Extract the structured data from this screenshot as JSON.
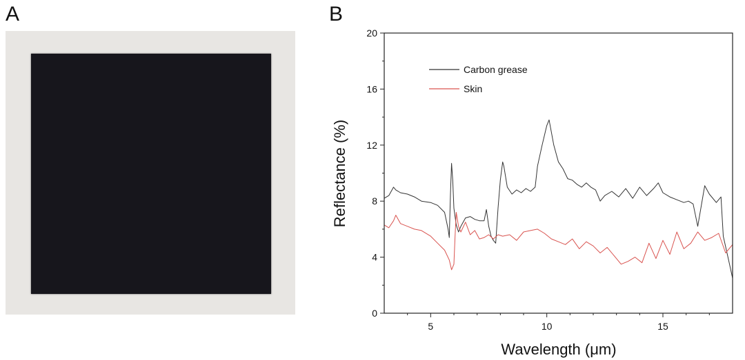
{
  "panels": {
    "a_label": "A",
    "b_label": "B"
  },
  "photo": {
    "background": "#e8e6e3",
    "square_color": "#17161c"
  },
  "chart_data": {
    "type": "line",
    "xlabel": "Wavelength (μm)",
    "ylabel": "Reflectance (%)",
    "xlim": [
      3,
      18
    ],
    "ylim": [
      0,
      20
    ],
    "xticks": [
      5,
      10,
      15
    ],
    "yticks": [
      0,
      4,
      8,
      12,
      16,
      20
    ],
    "legend_position": "top-left",
    "series": [
      {
        "name": "Carbon grease",
        "color": "#333333",
        "x": [
          3.0,
          3.2,
          3.4,
          3.5,
          3.7,
          4.0,
          4.3,
          4.6,
          5.0,
          5.3,
          5.6,
          5.75,
          5.8,
          5.85,
          5.9,
          5.95,
          6.0,
          6.1,
          6.2,
          6.3,
          6.5,
          6.7,
          6.9,
          7.1,
          7.3,
          7.4,
          7.5,
          7.6,
          7.7,
          7.8,
          7.9,
          8.0,
          8.1,
          8.15,
          8.3,
          8.5,
          8.7,
          8.9,
          9.1,
          9.3,
          9.5,
          9.6,
          9.8,
          10.0,
          10.1,
          10.3,
          10.5,
          10.7,
          10.9,
          11.1,
          11.3,
          11.5,
          11.7,
          11.9,
          12.1,
          12.3,
          12.5,
          12.8,
          13.1,
          13.4,
          13.7,
          14.0,
          14.3,
          14.6,
          14.8,
          15.0,
          15.3,
          15.6,
          15.9,
          16.1,
          16.3,
          16.5,
          16.8,
          17.0,
          17.3,
          17.5,
          17.6,
          17.8,
          18.0
        ],
        "y": [
          8.2,
          8.4,
          9.0,
          8.8,
          8.6,
          8.5,
          8.3,
          8.0,
          7.9,
          7.7,
          7.2,
          6.0,
          5.4,
          8.5,
          10.7,
          9.5,
          7.5,
          6.3,
          5.8,
          6.2,
          6.8,
          6.9,
          6.7,
          6.6,
          6.6,
          7.4,
          6.2,
          5.5,
          5.2,
          5.0,
          7.5,
          9.5,
          10.8,
          10.5,
          9.0,
          8.5,
          8.8,
          8.6,
          8.9,
          8.7,
          9.0,
          10.5,
          12.0,
          13.4,
          13.8,
          12.0,
          10.8,
          10.3,
          9.6,
          9.5,
          9.2,
          9.0,
          9.3,
          9.0,
          8.8,
          8.0,
          8.4,
          8.7,
          8.3,
          8.9,
          8.2,
          9.0,
          8.4,
          8.9,
          9.3,
          8.6,
          8.3,
          8.1,
          7.9,
          8.0,
          7.8,
          6.2,
          9.1,
          8.5,
          7.9,
          8.3,
          5.5,
          4.0,
          2.5
        ]
      },
      {
        "name": "Skin",
        "color": "#d9534f",
        "x": [
          3.0,
          3.2,
          3.4,
          3.5,
          3.7,
          4.0,
          4.3,
          4.6,
          5.0,
          5.3,
          5.6,
          5.8,
          5.9,
          6.0,
          6.05,
          6.1,
          6.2,
          6.3,
          6.5,
          6.7,
          6.9,
          7.1,
          7.3,
          7.5,
          7.7,
          7.9,
          8.1,
          8.4,
          8.7,
          9.0,
          9.3,
          9.6,
          9.9,
          10.2,
          10.5,
          10.8,
          11.1,
          11.4,
          11.7,
          12.0,
          12.3,
          12.6,
          12.9,
          13.2,
          13.5,
          13.8,
          14.1,
          14.4,
          14.7,
          15.0,
          15.3,
          15.6,
          15.9,
          16.2,
          16.5,
          16.8,
          17.1,
          17.4,
          17.7,
          18.0
        ],
        "y": [
          6.3,
          6.1,
          6.6,
          7.0,
          6.4,
          6.2,
          6.0,
          5.9,
          5.5,
          5.0,
          4.5,
          3.8,
          3.1,
          3.5,
          5.5,
          7.2,
          6.2,
          5.8,
          6.5,
          5.6,
          5.9,
          5.3,
          5.4,
          5.6,
          5.3,
          5.6,
          5.5,
          5.6,
          5.2,
          5.8,
          5.9,
          6.0,
          5.7,
          5.3,
          5.1,
          4.9,
          5.3,
          4.6,
          5.1,
          4.8,
          4.3,
          4.7,
          4.1,
          3.5,
          3.7,
          4.0,
          3.6,
          5.0,
          3.9,
          5.2,
          4.2,
          5.8,
          4.6,
          5.0,
          5.8,
          5.2,
          5.4,
          5.7,
          4.3,
          4.9
        ]
      }
    ]
  }
}
